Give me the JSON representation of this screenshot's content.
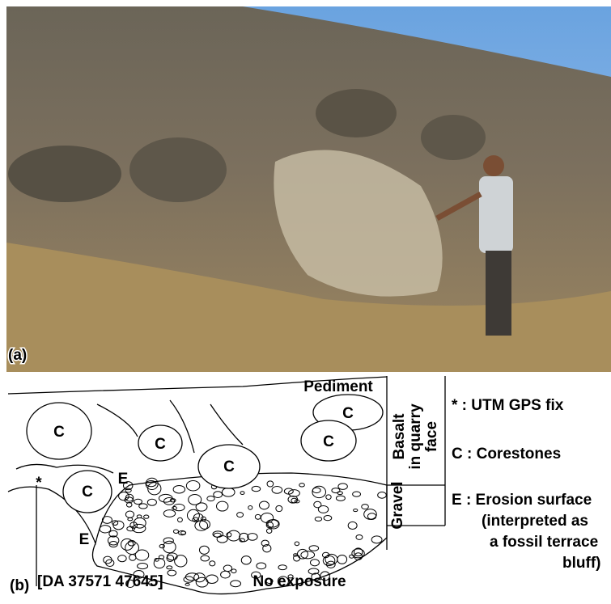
{
  "photo": {
    "label": "(a)"
  },
  "sketch": {
    "label": "(b)",
    "pediment": "Pediment",
    "basalt_label": [
      "Basalt",
      "in quarry",
      "face"
    ],
    "gravel_label": "Gravel",
    "corestones": [
      "C",
      "C",
      "C",
      "C",
      "C",
      "C"
    ],
    "erosion_marks": [
      "E",
      "E"
    ],
    "gps_star": "*",
    "grid_reference": "[DA 37571 47645]",
    "no_exposure": "No exposure"
  },
  "legend": [
    "* : UTM GPS fix",
    "C : Corestones",
    "E : Erosion surface",
    "(interpreted as",
    "a fossil terrace",
    "bluff)"
  ]
}
